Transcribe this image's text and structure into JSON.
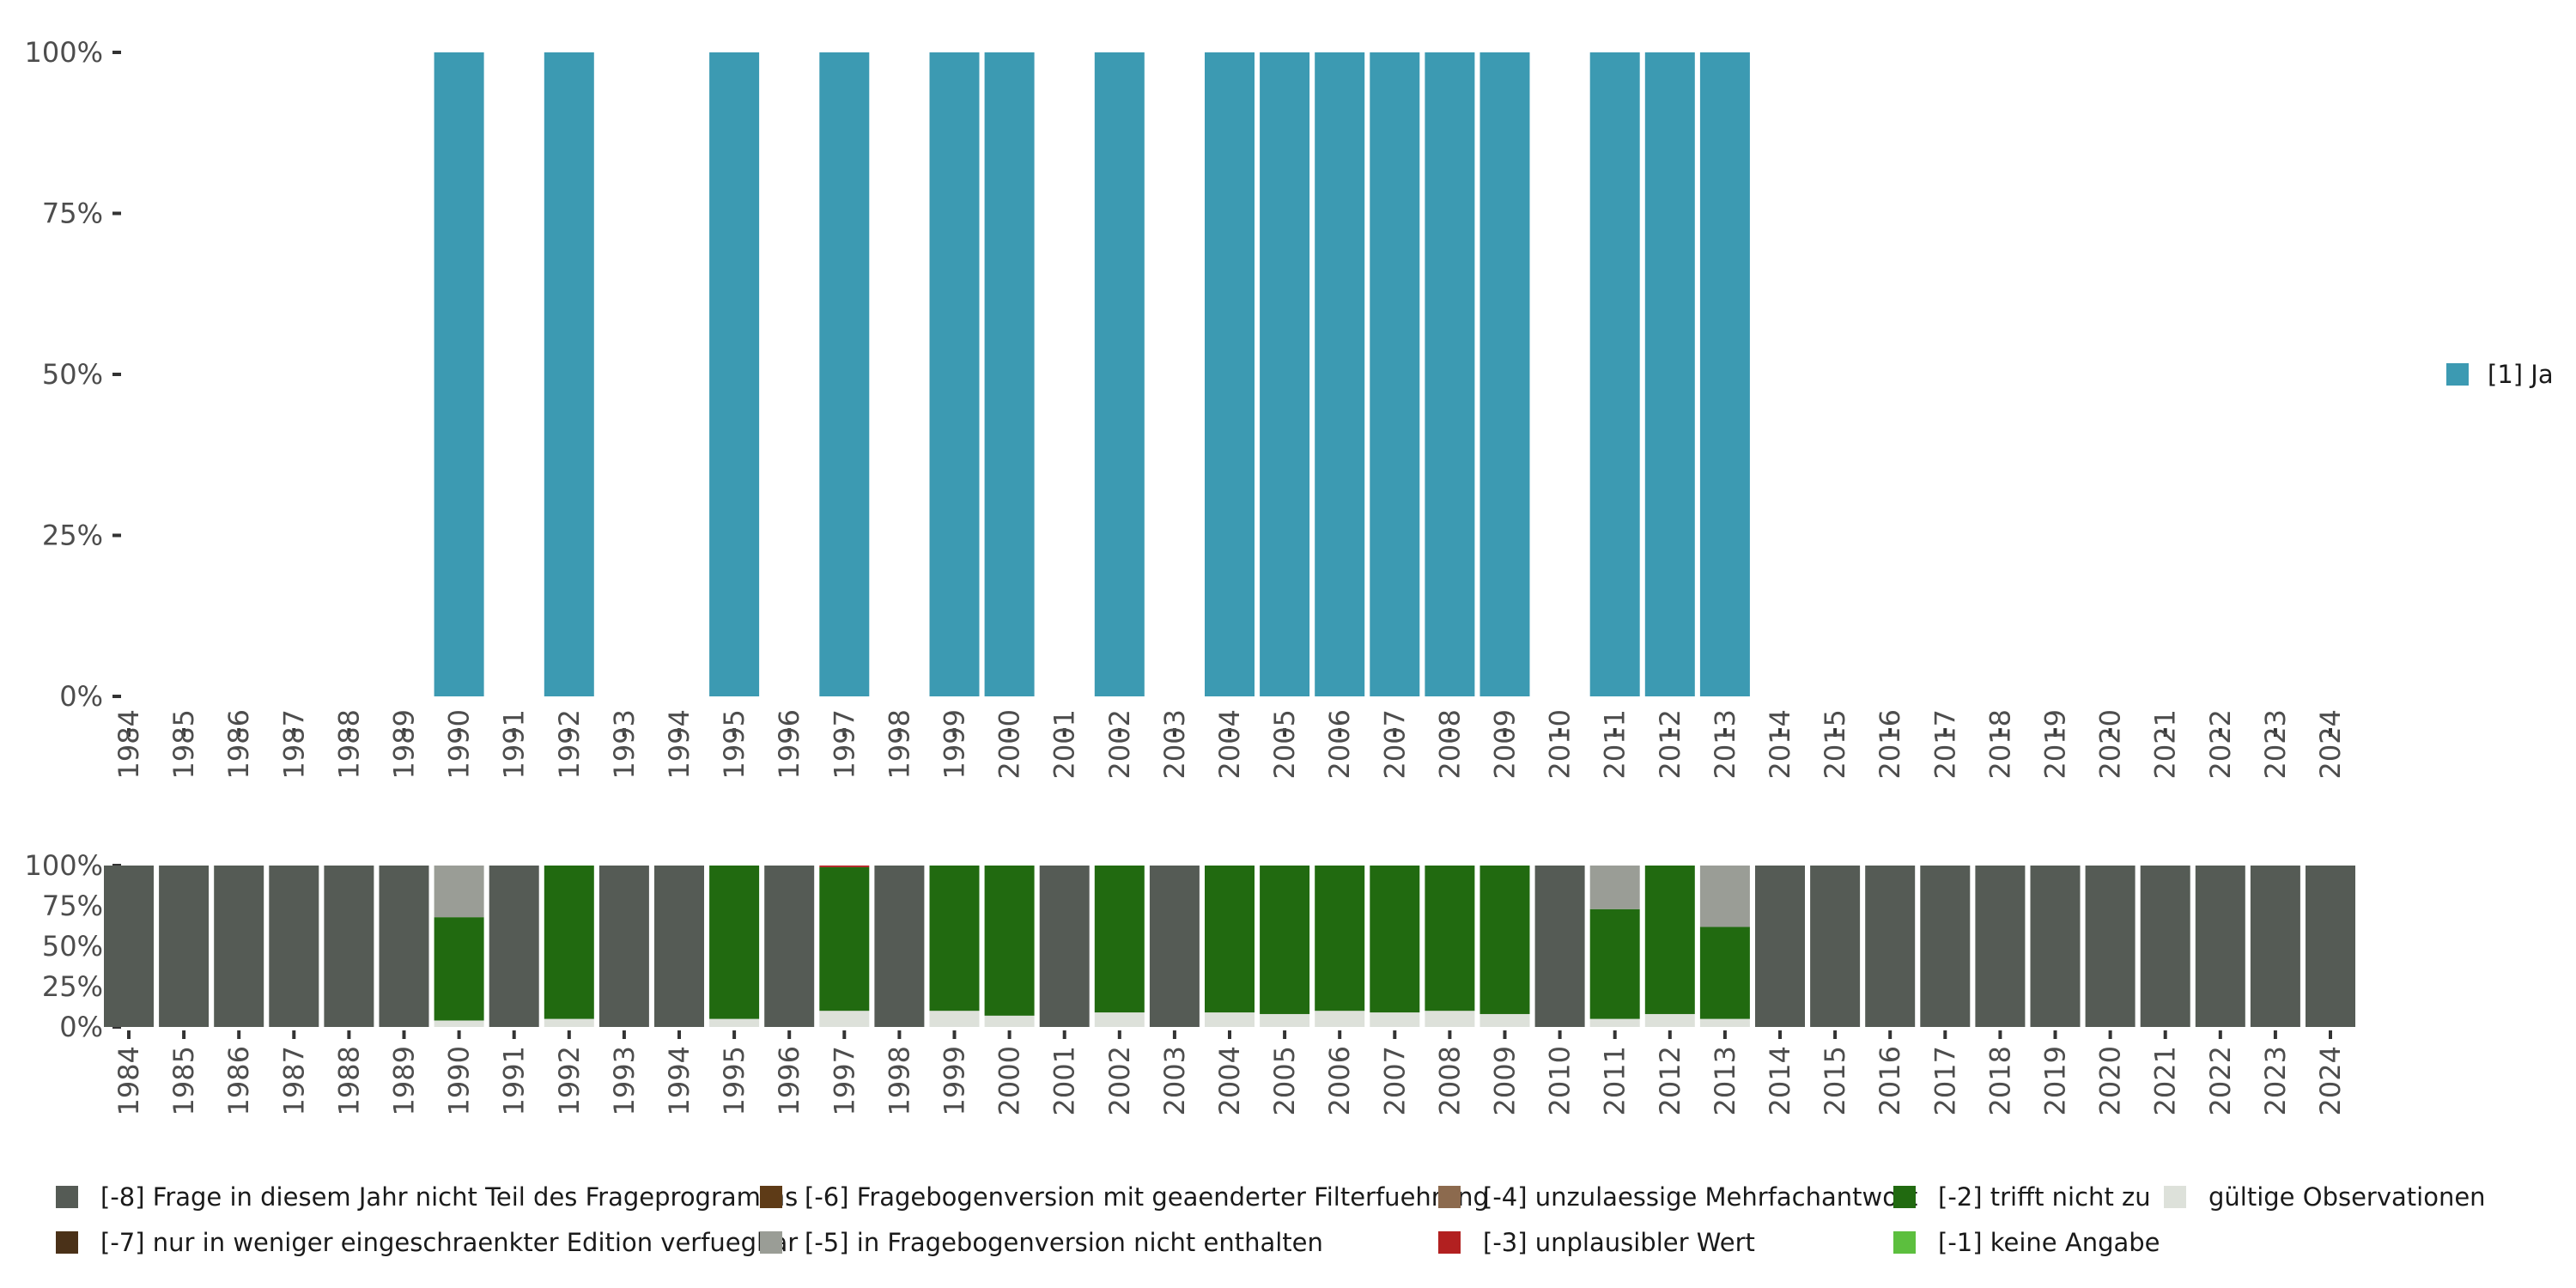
{
  "chart_data": [
    {
      "type": "bar",
      "name": "top-chart",
      "years": [
        "1984",
        "1985",
        "1986",
        "1987",
        "1988",
        "1989",
        "1990",
        "1991",
        "1992",
        "1993",
        "1994",
        "1995",
        "1996",
        "1997",
        "1998",
        "1999",
        "2000",
        "2001",
        "2002",
        "2003",
        "2004",
        "2005",
        "2006",
        "2007",
        "2008",
        "2009",
        "2010",
        "2011",
        "2012",
        "2013",
        "2014",
        "2015",
        "2016",
        "2017",
        "2018",
        "2019",
        "2020",
        "2021",
        "2022",
        "2023",
        "2024"
      ],
      "series": [
        {
          "name": "[1] Ja",
          "color": "#3c9ab2",
          "values": [
            0,
            0,
            0,
            0,
            0,
            0,
            100,
            0,
            100,
            0,
            0,
            100,
            0,
            100,
            0,
            100,
            100,
            0,
            100,
            0,
            100,
            100,
            100,
            100,
            100,
            100,
            0,
            100,
            100,
            100,
            0,
            0,
            0,
            0,
            0,
            0,
            0,
            0,
            0,
            0,
            0
          ]
        }
      ],
      "yticks": [
        "0%",
        "25%",
        "50%",
        "75%",
        "100%"
      ],
      "ylim": [
        0,
        100
      ]
    },
    {
      "type": "bar",
      "name": "bottom-chart",
      "stacked": true,
      "years": [
        "1984",
        "1985",
        "1986",
        "1987",
        "1988",
        "1989",
        "1990",
        "1991",
        "1992",
        "1993",
        "1994",
        "1995",
        "1996",
        "1997",
        "1998",
        "1999",
        "2000",
        "2001",
        "2002",
        "2003",
        "2004",
        "2005",
        "2006",
        "2007",
        "2008",
        "2009",
        "2010",
        "2011",
        "2012",
        "2013",
        "2014",
        "2015",
        "2016",
        "2017",
        "2018",
        "2019",
        "2020",
        "2021",
        "2022",
        "2023",
        "2024"
      ],
      "series": [
        {
          "name": "gültige Observationen",
          "color": "#dde1da",
          "values": [
            0,
            0,
            0,
            0,
            0,
            0,
            4,
            0,
            5,
            0,
            0,
            5,
            0,
            10,
            0,
            10,
            7,
            0,
            9,
            0,
            9,
            8,
            10,
            9,
            10,
            8,
            0,
            5,
            8,
            5,
            0,
            0,
            0,
            0,
            0,
            0,
            0,
            0,
            0,
            0,
            0
          ]
        },
        {
          "name": "[-2] trifft nicht zu",
          "color": "#216a10",
          "values": [
            0,
            0,
            0,
            0,
            0,
            0,
            64,
            0,
            95,
            0,
            0,
            95,
            0,
            89,
            0,
            90,
            93,
            0,
            91,
            0,
            91,
            92,
            90,
            91,
            90,
            92,
            0,
            68,
            92,
            57,
            0,
            0,
            0,
            0,
            0,
            0,
            0,
            0,
            0,
            0,
            0
          ]
        },
        {
          "name": "[-3] unplausibler Wert",
          "color": "#b22020",
          "values": [
            0,
            0,
            0,
            0,
            0,
            0,
            0,
            0,
            0,
            0,
            0,
            0,
            0,
            1,
            0,
            0,
            0,
            0,
            0,
            0,
            0,
            0,
            0,
            0,
            0,
            0,
            0,
            0,
            0,
            0,
            0,
            0,
            0,
            0,
            0,
            0,
            0,
            0,
            0,
            0,
            0
          ]
        },
        {
          "name": "[-5] in Fragebogenversion nicht enthalten",
          "color": "#9a9d96",
          "values": [
            0,
            0,
            0,
            0,
            0,
            0,
            32,
            0,
            0,
            0,
            0,
            0,
            0,
            0,
            0,
            0,
            0,
            0,
            0,
            0,
            0,
            0,
            0,
            0,
            0,
            0,
            0,
            27,
            0,
            38,
            0,
            0,
            0,
            0,
            0,
            0,
            0,
            0,
            0,
            0,
            0
          ]
        },
        {
          "name": "[-8] Frage in diesem Jahr nicht Teil des Frageprogramms",
          "color": "#555b55",
          "values": [
            100,
            100,
            100,
            100,
            100,
            100,
            0,
            100,
            0,
            100,
            100,
            0,
            100,
            0,
            100,
            0,
            0,
            100,
            0,
            100,
            0,
            0,
            0,
            0,
            0,
            0,
            100,
            0,
            0,
            0,
            100,
            100,
            100,
            100,
            100,
            100,
            100,
            100,
            100,
            100,
            100
          ]
        }
      ],
      "yticks": [
        "0%",
        "25%",
        "50%",
        "75%",
        "100%"
      ],
      "ylim": [
        0,
        100
      ]
    }
  ],
  "top_legend": [
    {
      "label": "[1] Ja",
      "color": "#3c9ab2"
    }
  ],
  "bottom_legend": [
    {
      "label": "[-8] Frage in diesem Jahr nicht Teil des Frageprogramms",
      "color": "#555b55"
    },
    {
      "label": "[-7] nur in weniger eingeschraenkter Edition verfuegbar",
      "color": "#4a3118"
    },
    {
      "label": "[-6] Fragebogenversion mit geaenderter Filterfuehrung",
      "color": "#5e3b17"
    },
    {
      "label": "[-5] in Fragebogenversion nicht enthalten",
      "color": "#9a9d96"
    },
    {
      "label": "[-4] unzulaessige Mehrfachantwort",
      "color": "#8c6a4e"
    },
    {
      "label": "[-3] unplausibler Wert",
      "color": "#b22020"
    },
    {
      "label": "[-2] trifft nicht zu",
      "color": "#216a10"
    },
    {
      "label": "[-1] keine Angabe",
      "color": "#5cbf3e"
    },
    {
      "label": "gültige Observationen",
      "color": "#dde1da"
    }
  ]
}
